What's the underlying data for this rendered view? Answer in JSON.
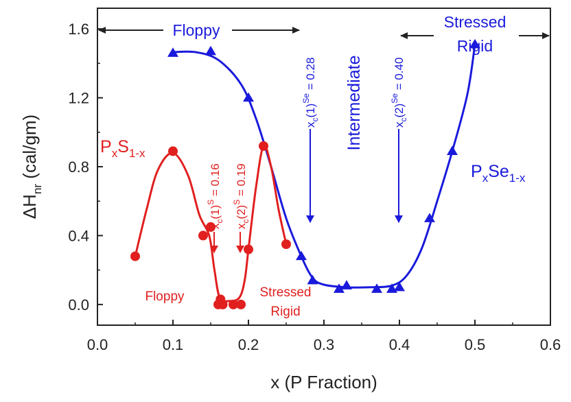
{
  "chart_data": {
    "type": "line",
    "x_axis": {
      "title": "x (P Fraction)",
      "range": [
        0.0,
        0.6
      ],
      "ticks": [
        "0.0",
        "0.1",
        "0.2",
        "0.3",
        "0.4",
        "0.5",
        "0.6"
      ]
    },
    "y_axis": {
      "title_main": "ΔH",
      "title_sub": "nr",
      "title_rest": " (cal/gm)",
      "range": [
        -0.12,
        1.72
      ],
      "ticks": [
        "0.0",
        "0.4",
        "0.8",
        "1.2",
        "1.6"
      ]
    },
    "series": [
      {
        "name": "PxSe1-x",
        "label_main": "P",
        "label_sub1": "x",
        "label_mid": "Se",
        "label_sub2": "1-x",
        "color": "#1a1adc",
        "marker": "triangle",
        "points": [
          [
            0.1,
            1.46
          ],
          [
            0.15,
            1.47
          ],
          [
            0.2,
            1.2
          ],
          [
            0.27,
            0.28
          ],
          [
            0.285,
            0.14
          ],
          [
            0.32,
            0.09
          ],
          [
            0.33,
            0.11
          ],
          [
            0.37,
            0.09
          ],
          [
            0.39,
            0.09
          ],
          [
            0.4,
            0.1
          ],
          [
            0.44,
            0.5
          ],
          [
            0.47,
            0.89
          ],
          [
            0.5,
            1.51
          ]
        ],
        "curve": [
          [
            0.1,
            1.465
          ],
          [
            0.13,
            1.465
          ],
          [
            0.16,
            1.42
          ],
          [
            0.19,
            1.28
          ],
          [
            0.21,
            1.08
          ],
          [
            0.23,
            0.8
          ],
          [
            0.25,
            0.5
          ],
          [
            0.27,
            0.28
          ],
          [
            0.285,
            0.155
          ],
          [
            0.3,
            0.115
          ],
          [
            0.33,
            0.1
          ],
          [
            0.36,
            0.1
          ],
          [
            0.39,
            0.11
          ],
          [
            0.41,
            0.17
          ],
          [
            0.43,
            0.33
          ],
          [
            0.45,
            0.6
          ],
          [
            0.47,
            0.89
          ],
          [
            0.49,
            1.22
          ],
          [
            0.5,
            1.51
          ]
        ]
      },
      {
        "name": "PxS1-x",
        "label_main": "P",
        "label_sub1": "x",
        "label_mid": "S",
        "label_sub2": "1-x",
        "color": "#e11f1f",
        "marker": "circle",
        "points": [
          [
            0.05,
            0.28
          ],
          [
            0.1,
            0.89
          ],
          [
            0.14,
            0.4
          ],
          [
            0.15,
            0.45
          ],
          [
            0.16,
            0.0
          ],
          [
            0.163,
            0.03
          ],
          [
            0.166,
            0.0
          ],
          [
            0.18,
            0.0
          ],
          [
            0.19,
            0.0
          ],
          [
            0.2,
            0.32
          ],
          [
            0.22,
            0.92
          ],
          [
            0.25,
            0.35
          ]
        ],
        "curve": [
          [
            0.05,
            0.28
          ],
          [
            0.065,
            0.55
          ],
          [
            0.08,
            0.78
          ],
          [
            0.1,
            0.88
          ],
          [
            0.12,
            0.75
          ],
          [
            0.135,
            0.52
          ],
          [
            0.148,
            0.4
          ],
          [
            0.155,
            0.2
          ],
          [
            0.162,
            0.04
          ],
          [
            0.175,
            0.02
          ],
          [
            0.188,
            0.04
          ],
          [
            0.195,
            0.14
          ],
          [
            0.2,
            0.32
          ],
          [
            0.21,
            0.68
          ],
          [
            0.22,
            0.92
          ],
          [
            0.23,
            0.8
          ],
          [
            0.24,
            0.55
          ],
          [
            0.25,
            0.35
          ]
        ]
      }
    ],
    "annotations": {
      "floppy_top": "Floppy",
      "intermediate": "Intermediate",
      "stressed_rigid_top_1": "Stressed",
      "stressed_rigid_top_2": "Rigid",
      "xc1_se_main": "x",
      "xc1_se_sub": "c",
      "xc1_se_mid": "(1)",
      "xc1_se_sup": "Se",
      "xc1_se_value": " = 0.28",
      "xc2_se_main": "x",
      "xc2_se_sub": "c",
      "xc2_se_mid": "(2)",
      "xc2_se_sup": "Se",
      "xc2_se_value": " = 0.40",
      "xc1_s_main": "x",
      "xc1_s_sub": "c",
      "xc1_s_mid": "(1)",
      "xc1_s_sup": "S",
      "xc1_s_value": " = 0.16",
      "xc2_s_main": "x",
      "xc2_s_sub": "c",
      "xc2_s_mid": "(2)",
      "xc2_s_sup": "S",
      "xc2_s_value": " = 0.19",
      "floppy_bottom": "Floppy",
      "stressed_rigid_bottom_1": "Stressed",
      "stressed_rigid_bottom_2": "Rigid"
    },
    "grid": false,
    "legend": "none"
  }
}
